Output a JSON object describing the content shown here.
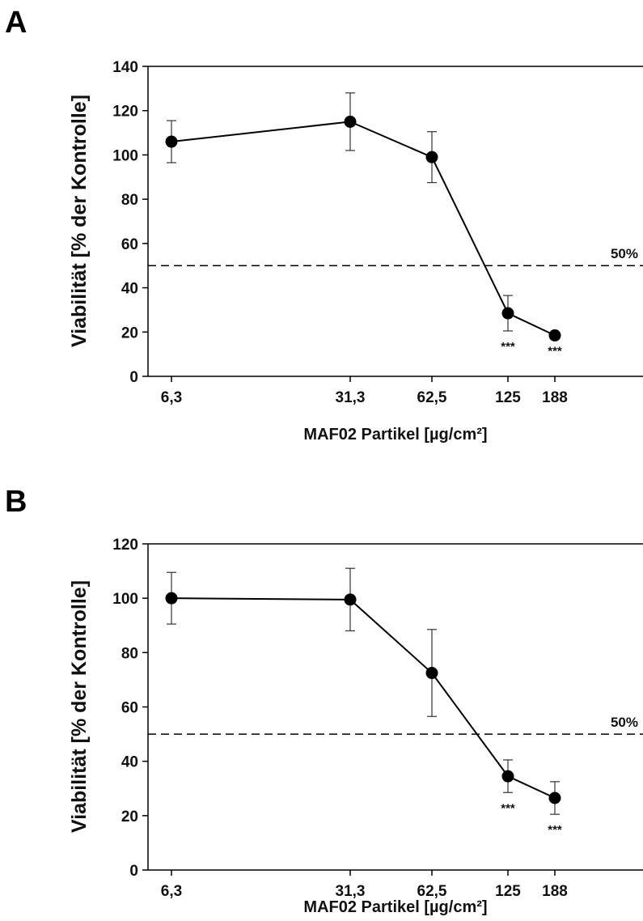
{
  "chart_data": [
    {
      "type": "line",
      "panel": "A",
      "xlabel": "MAF02 Partikel [µg/cm²]",
      "ylabel": "Viabilität [% der Kontrolle]",
      "ylim": [
        0,
        140
      ],
      "yticks": [
        "0",
        "20",
        "40",
        "60",
        "80",
        "100",
        "120",
        "140"
      ],
      "x": [
        "6,3",
        "31,3",
        "62,5",
        "125",
        "188"
      ],
      "x_scale": "log",
      "series": [
        {
          "values": [
            106,
            115,
            99,
            28.5,
            18.5
          ],
          "error": [
            9.5,
            13,
            11.5,
            8,
            0
          ],
          "significance": [
            "",
            "",
            "",
            "***",
            "***"
          ]
        }
      ],
      "reference_line": {
        "y": 50,
        "label": "50%"
      },
      "grid": false
    },
    {
      "type": "line",
      "panel": "B",
      "xlabel": "MAF02 Partikel [µg/cm²]",
      "ylabel": "Viabilität [% der Kontrolle]",
      "ylim": [
        0,
        120
      ],
      "yticks": [
        "0",
        "20",
        "40",
        "60",
        "80",
        "100",
        "120"
      ],
      "x": [
        "6,3",
        "31,3",
        "62,5",
        "125",
        "188"
      ],
      "x_scale": "log",
      "series": [
        {
          "values": [
            100,
            99.5,
            72.5,
            34.5,
            26.5
          ],
          "error": [
            9.5,
            11.5,
            16,
            6,
            6
          ],
          "significance": [
            "",
            "",
            "",
            "***",
            "***"
          ]
        }
      ],
      "reference_line": {
        "y": 50,
        "label": "50%"
      },
      "grid": false
    }
  ]
}
